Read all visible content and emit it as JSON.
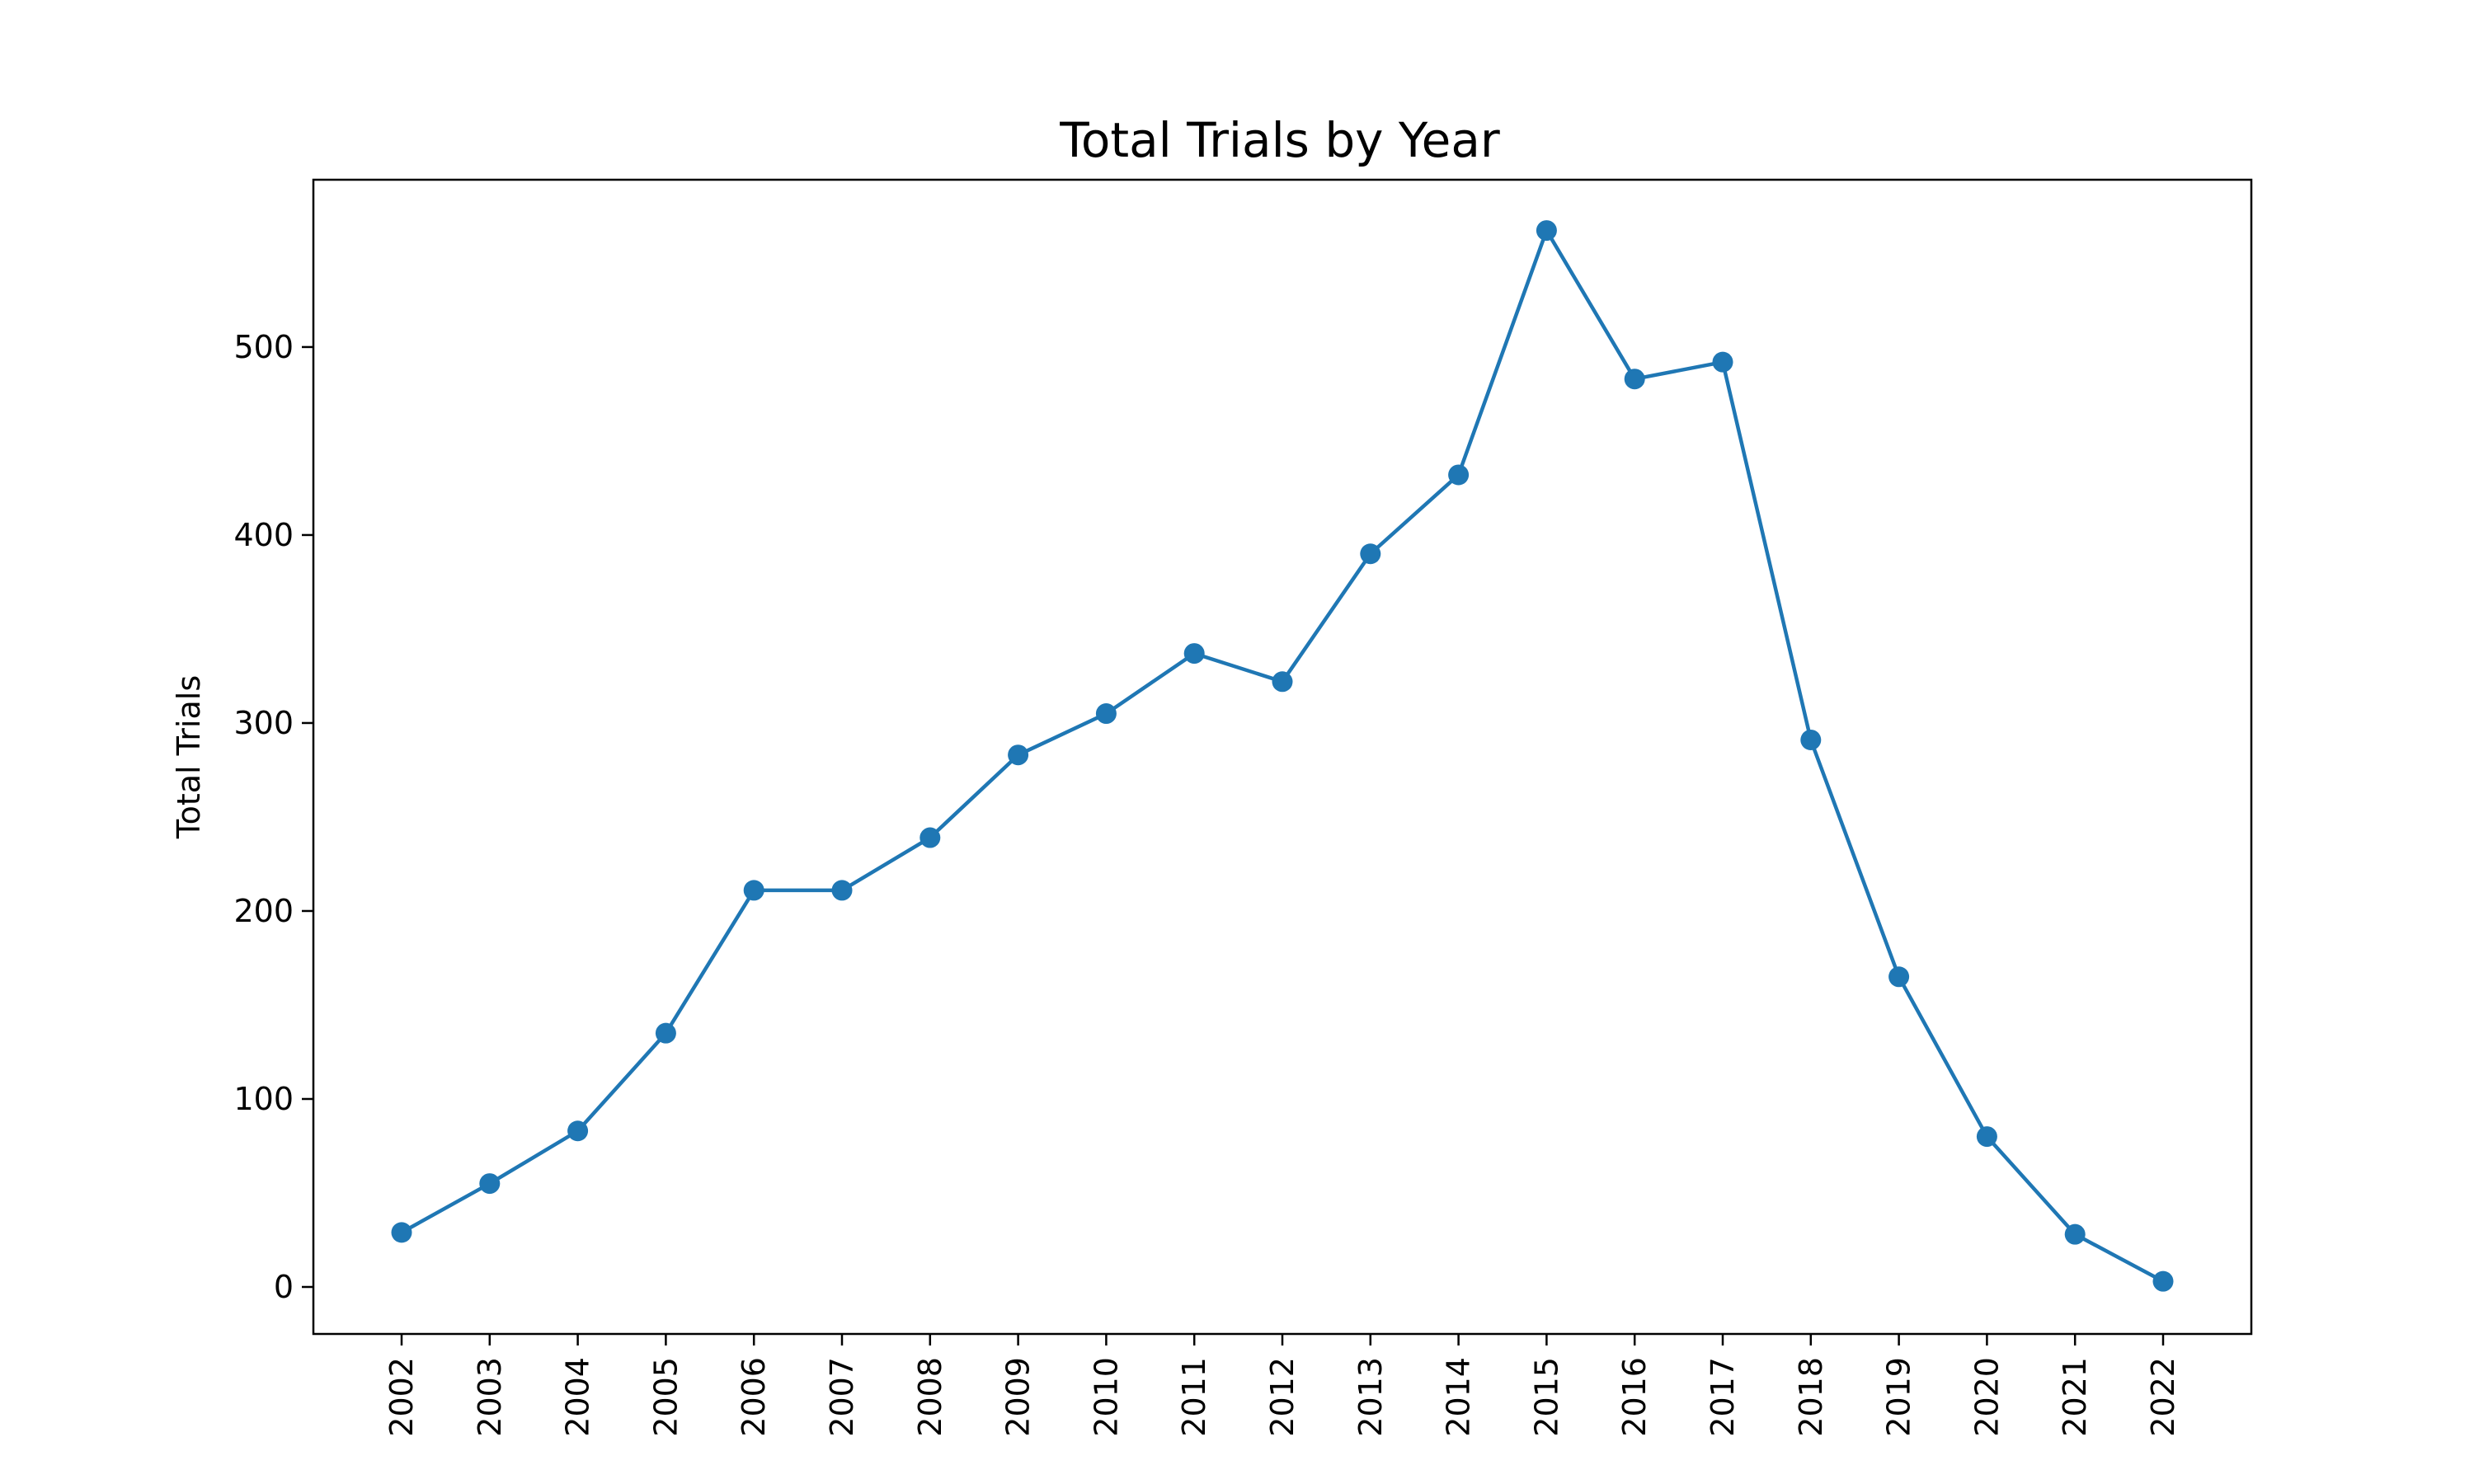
{
  "chart_data": {
    "type": "line",
    "title": "Total Trials by Year",
    "xlabel": "",
    "ylabel": "Total Trials",
    "categories": [
      "2002",
      "2003",
      "2004",
      "2005",
      "2006",
      "2007",
      "2008",
      "2009",
      "2010",
      "2011",
      "2012",
      "2013",
      "2014",
      "2015",
      "2016",
      "2017",
      "2018",
      "2019",
      "2020",
      "2021",
      "2022"
    ],
    "series": [
      {
        "values": [
          29,
          55,
          83,
          135,
          211,
          211,
          239,
          283,
          305,
          337,
          322,
          390,
          432,
          562,
          483,
          492,
          291,
          165,
          80,
          28,
          3
        ],
        "color": "#1f77b4",
        "marker": "circle"
      }
    ],
    "yticks": [
      0,
      100,
      200,
      300,
      400,
      500
    ],
    "ylim": [
      -25,
      589
    ],
    "grid": false,
    "legend": "none"
  }
}
